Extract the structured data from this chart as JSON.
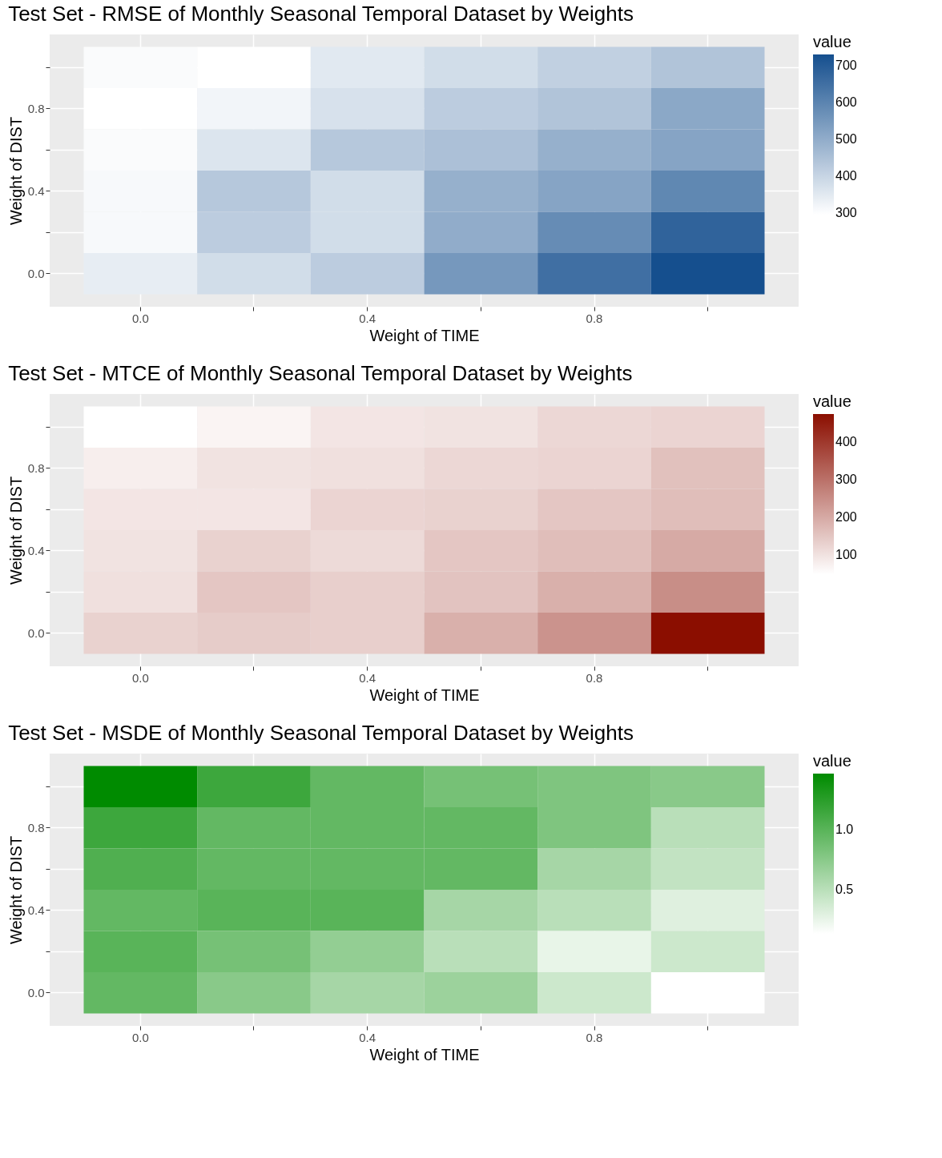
{
  "chart_data": [
    {
      "type": "heatmap",
      "title": "Test Set - RMSE of Monthly Seasonal Temporal Dataset by Weights",
      "xlabel": "Weight of TIME",
      "ylabel": "Weight of DIST",
      "clabel": "value",
      "grid": true,
      "categories": [
        "0.0",
        null,
        "0.4",
        null,
        "0.8",
        null
      ],
      "y_categories": [
        null,
        "0.8",
        null,
        "0.4",
        null,
        "0.0"
      ],
      "cells": [
        [
          305,
          295,
          350,
          380,
          410,
          440
        ],
        [
          295,
          320,
          370,
          420,
          440,
          510
        ],
        [
          305,
          360,
          430,
          450,
          490,
          520
        ],
        [
          310,
          430,
          380,
          490,
          520,
          590
        ],
        [
          310,
          420,
          380,
          500,
          580,
          680
        ],
        [
          340,
          380,
          420,
          550,
          650,
          730
        ]
      ],
      "clim": [
        295,
        730
      ],
      "cticks": [
        300,
        400,
        500,
        600,
        700
      ],
      "colors": [
        "#ffffff",
        "#154f8e"
      ]
    },
    {
      "type": "heatmap",
      "title": "Test Set - MTCE of Monthly Seasonal Temporal Dataset by Weights",
      "xlabel": "Weight of TIME",
      "ylabel": "Weight of DIST",
      "clabel": "value",
      "grid": true,
      "categories": [
        "0.0",
        null,
        "0.4",
        null,
        "0.8",
        null
      ],
      "y_categories": [
        null,
        "0.8",
        null,
        "0.4",
        null,
        "0.0"
      ],
      "cells": [
        [
          50,
          70,
          95,
          100,
          120,
          125
        ],
        [
          80,
          100,
          105,
          120,
          125,
          160
        ],
        [
          95,
          95,
          125,
          130,
          150,
          165
        ],
        [
          100,
          130,
          115,
          150,
          165,
          200
        ],
        [
          105,
          150,
          135,
          155,
          190,
          250
        ],
        [
          130,
          140,
          135,
          190,
          240,
          475
        ]
      ],
      "clim": [
        50,
        475
      ],
      "cticks": [
        100,
        200,
        300,
        400
      ],
      "colors": [
        "#ffffff",
        "#8b0e00"
      ]
    },
    {
      "type": "heatmap",
      "title": "Test Set - MSDE of Monthly Seasonal Temporal Dataset by Weights",
      "xlabel": "Weight of TIME",
      "ylabel": "Weight of DIST",
      "clabel": "value",
      "grid": true,
      "categories": [
        "0.0",
        null,
        "0.4",
        null,
        "0.8",
        null
      ],
      "y_categories": [
        null,
        "0.8",
        null,
        "0.4",
        null,
        "0.0"
      ],
      "cells": [
        [
          1.47,
          1.15,
          0.95,
          0.85,
          0.8,
          0.75
        ],
        [
          1.15,
          0.95,
          0.95,
          0.95,
          0.8,
          0.5
        ],
        [
          1.05,
          0.95,
          0.95,
          0.95,
          0.6,
          0.45
        ],
        [
          0.95,
          1.0,
          1.0,
          0.6,
          0.5,
          0.3
        ],
        [
          1.0,
          0.85,
          0.7,
          0.5,
          0.25,
          0.4
        ],
        [
          0.95,
          0.75,
          0.6,
          0.65,
          0.4,
          0.13
        ]
      ],
      "clim": [
        0.13,
        1.47
      ],
      "cticks": [
        {
          "value": 0.5,
          "label": "0.5"
        },
        {
          "value": 1.0,
          "label": "1.0"
        }
      ],
      "colors": [
        "#ffffff",
        "#008b00"
      ]
    }
  ]
}
